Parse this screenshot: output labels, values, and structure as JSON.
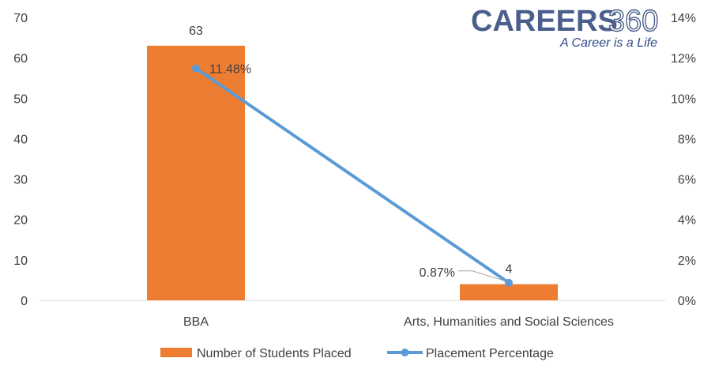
{
  "branding": {
    "logo_word": "CAREERS",
    "logo_number": "360",
    "tagline": "A Career is a Life"
  },
  "chart_data": {
    "type": "bar",
    "categories": [
      "BBA",
      "Arts, Humanities and Social Sciences"
    ],
    "series": [
      {
        "name": "Number of Students Placed",
        "type": "bar",
        "axis": "left",
        "values": [
          63,
          4
        ],
        "labels": [
          "63",
          "4"
        ],
        "color": "#ED7D31"
      },
      {
        "name": "Placement Percentage",
        "type": "line",
        "axis": "right",
        "values": [
          11.48,
          0.87
        ],
        "labels": [
          "11.48%",
          "0.87%"
        ],
        "color": "#5B9BD5"
      }
    ],
    "y_left": {
      "min": 0,
      "max": 70,
      "step": 10,
      "ticks": [
        "0",
        "10",
        "20",
        "30",
        "40",
        "50",
        "60",
        "70"
      ]
    },
    "y_right": {
      "min": 0,
      "max": 14,
      "step": 2,
      "ticks": [
        "0%",
        "2%",
        "4%",
        "6%",
        "8%",
        "10%",
        "12%",
        "14%"
      ]
    },
    "grid": false,
    "legend_position": "bottom",
    "title": "",
    "xlabel": "",
    "ylabel": ""
  }
}
